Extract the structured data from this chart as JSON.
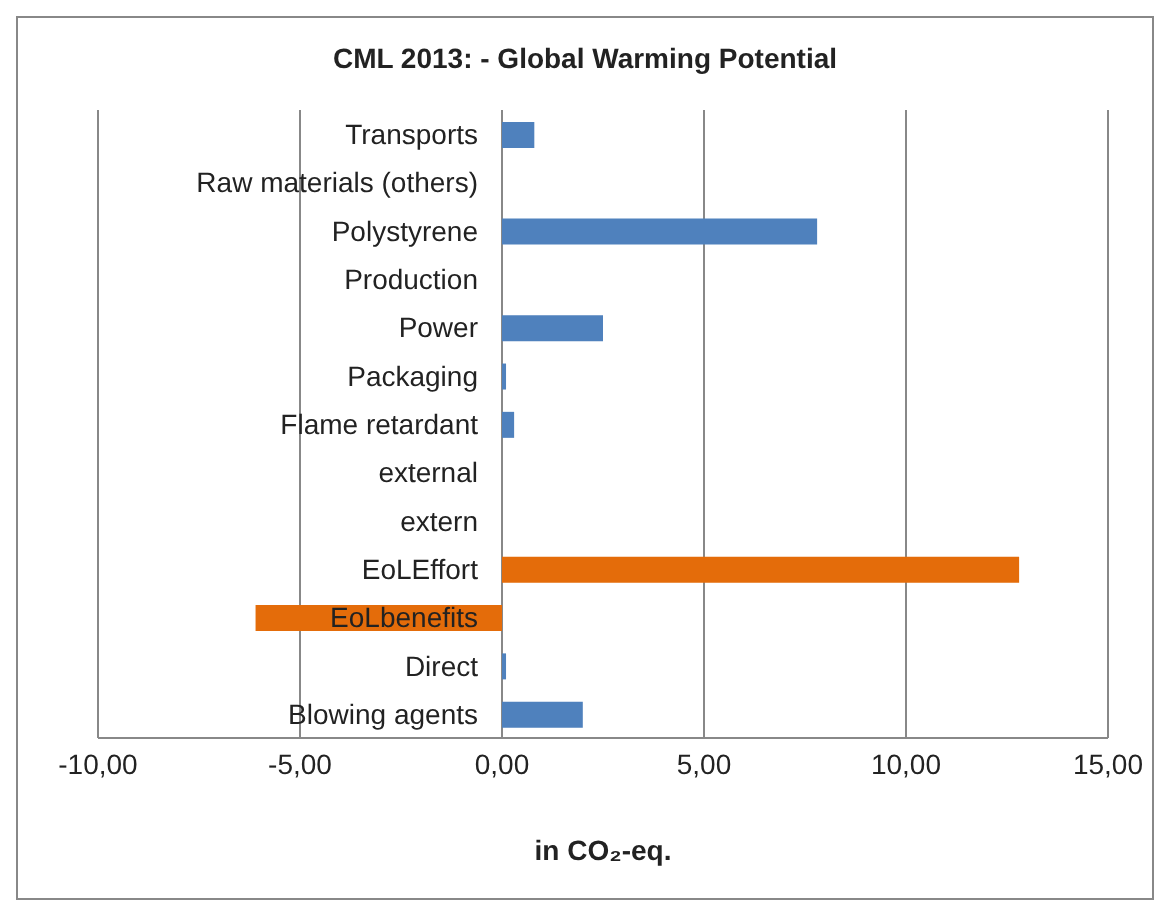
{
  "chart_data": {
    "type": "bar",
    "orientation": "horizontal",
    "title": "CML 2013: - Global Warming Potential",
    "xlabel": "in CO₂-eq.",
    "categories": [
      "Transports",
      "Raw materials (others)",
      "Polystyrene",
      "Production",
      "Power",
      "Packaging",
      "Flame retardant",
      "external",
      "extern",
      "EoLEffort",
      "EoLbenefits",
      "Direct",
      "Blowing agents"
    ],
    "values": [
      0.8,
      0,
      7.8,
      0,
      2.5,
      0.1,
      0.3,
      0,
      0,
      12.8,
      -6.1,
      0.1,
      2.0
    ],
    "colors": [
      "#4f81bd",
      "#4f81bd",
      "#4f81bd",
      "#4f81bd",
      "#4f81bd",
      "#4f81bd",
      "#4f81bd",
      "#4f81bd",
      "#4f81bd",
      "#e46c0a",
      "#e46c0a",
      "#4f81bd",
      "#4f81bd"
    ],
    "xlim": [
      -10,
      15
    ],
    "xticks": [
      {
        "value": -10,
        "label": "-10,00"
      },
      {
        "value": -5,
        "label": "-5,00"
      },
      {
        "value": 0,
        "label": "0,00"
      },
      {
        "value": 5,
        "label": "5,00"
      },
      {
        "value": 10,
        "label": "10,00"
      },
      {
        "value": 15,
        "label": "15,00"
      }
    ],
    "grid": "x"
  }
}
